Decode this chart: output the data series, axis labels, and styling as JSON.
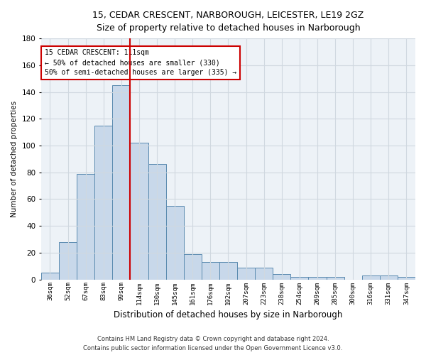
{
  "title1": "15, CEDAR CRESCENT, NARBOROUGH, LEICESTER, LE19 2GZ",
  "title2": "Size of property relative to detached houses in Narborough",
  "xlabel": "Distribution of detached houses by size in Narborough",
  "ylabel": "Number of detached properties",
  "bar_color": "#c8d8ea",
  "bar_edge_color": "#5a8ab0",
  "categories": [
    "36sqm",
    "52sqm",
    "67sqm",
    "83sqm",
    "99sqm",
    "114sqm",
    "130sqm",
    "145sqm",
    "161sqm",
    "176sqm",
    "192sqm",
    "207sqm",
    "223sqm",
    "238sqm",
    "254sqm",
    "269sqm",
    "285sqm",
    "300sqm",
    "316sqm",
    "331sqm",
    "347sqm"
  ],
  "values": [
    5,
    28,
    79,
    115,
    145,
    102,
    86,
    55,
    19,
    13,
    13,
    9,
    9,
    4,
    2,
    2,
    2,
    0,
    3,
    3,
    2
  ],
  "vline_x": 4.5,
  "vline_color": "#cc0000",
  "annotation_text": "15 CEDAR CRESCENT: 111sqm\n← 50% of detached houses are smaller (330)\n50% of semi-detached houses are larger (335) →",
  "ylim": [
    0,
    180
  ],
  "yticks": [
    0,
    20,
    40,
    60,
    80,
    100,
    120,
    140,
    160,
    180
  ],
  "footer1": "Contains HM Land Registry data © Crown copyright and database right 2024.",
  "footer2": "Contains public sector information licensed under the Open Government Licence v3.0.",
  "grid_color": "#d0d8e0",
  "background_color": "#edf2f7"
}
